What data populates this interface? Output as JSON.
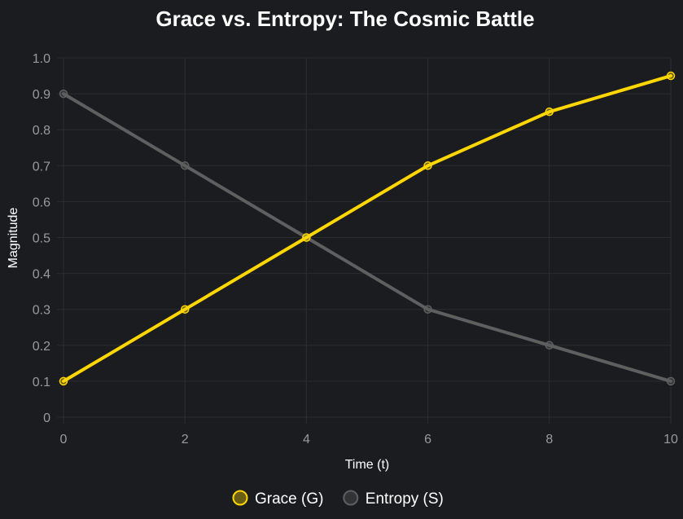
{
  "chart_data": {
    "type": "line",
    "title": "Grace vs. Entropy: The Cosmic Battle",
    "xlabel": "Time (t)",
    "ylabel": "Magnitude",
    "x": [
      0,
      2,
      4,
      6,
      8,
      10
    ],
    "xlim": [
      0,
      10
    ],
    "ylim": [
      0,
      1.0
    ],
    "x_ticks": [
      "0",
      "2",
      "4",
      "6",
      "8",
      "10"
    ],
    "y_ticks": [
      "0",
      "0.1",
      "0.2",
      "0.3",
      "0.4",
      "0.5",
      "0.6",
      "0.7",
      "0.8",
      "0.9",
      "1.0"
    ],
    "grid": true,
    "legend_position": "bottom",
    "series": [
      {
        "name": "Grace (G)",
        "values": [
          0.1,
          0.3,
          0.5,
          0.7,
          0.85,
          0.95
        ],
        "color": "#ffd700"
      },
      {
        "name": "Entropy (S)",
        "values": [
          0.9,
          0.7,
          0.5,
          0.3,
          0.2,
          0.1
        ],
        "color": "#5f5f5f"
      }
    ],
    "colors": {
      "background": "#1b1c1f",
      "grid": "#2c2d31",
      "tick_text": "#9a9a9a",
      "title_text": "#ffffff"
    }
  }
}
